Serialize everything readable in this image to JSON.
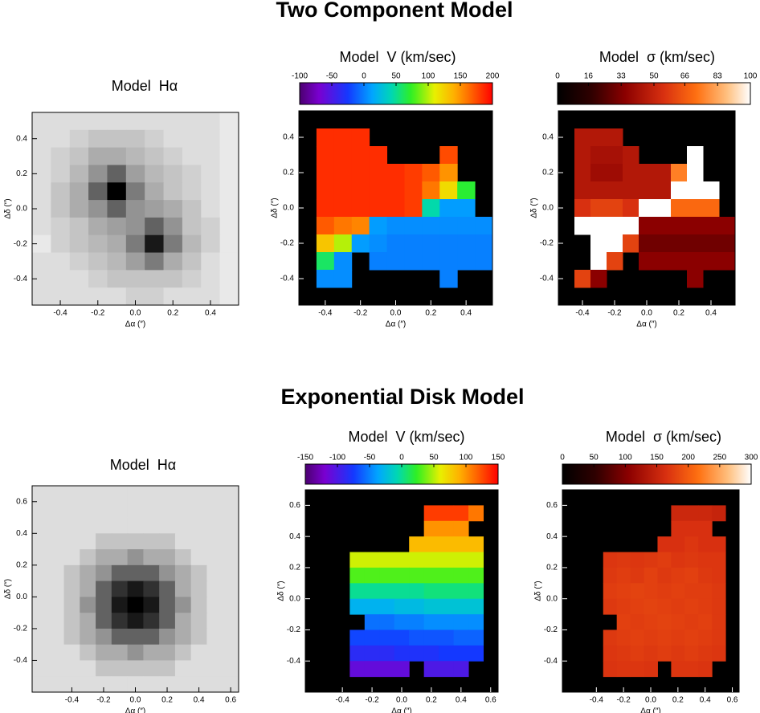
{
  "headings": [
    "Two Component Model",
    "Exponential Disk Model"
  ],
  "chart_data": [
    {
      "type": "heatmap",
      "title": "Model  Hα",
      "xlabel": "Δα (″)",
      "ylabel": "Δδ (″)",
      "colormap": "gray_r",
      "zlim": [
        0,
        10
      ],
      "xlim": [
        -0.55,
        0.55
      ],
      "ylim": [
        -0.55,
        0.55
      ],
      "xticks": [
        -0.4,
        -0.2,
        {
          "value": 0,
          "label": "0.0"
        },
        0.2,
        0.4
      ],
      "yticks": [
        -0.4,
        -0.2,
        {
          "value": 0,
          "label": "0.0"
        },
        0.2,
        0.4
      ],
      "values": [
        [
          1,
          1,
          1,
          1,
          1,
          1,
          1,
          1,
          1,
          1,
          0.5
        ],
        [
          1,
          1,
          1.5,
          2,
          2,
          2,
          1.5,
          1,
          1,
          1,
          0.5
        ],
        [
          1,
          1.5,
          2,
          3,
          3,
          2.5,
          2,
          1.5,
          1,
          1,
          0.5
        ],
        [
          1,
          1.5,
          2.5,
          4,
          6,
          3.5,
          2.5,
          2,
          1.5,
          1,
          0.5
        ],
        [
          1,
          2,
          3,
          6,
          10,
          5,
          3,
          2,
          1.5,
          1,
          0.5
        ],
        [
          1,
          2,
          3,
          4,
          6,
          4,
          3.5,
          3,
          2,
          1,
          0.5
        ],
        [
          1,
          1.5,
          2,
          3,
          3.5,
          4,
          6,
          4,
          2,
          1.5,
          0.5
        ],
        [
          0.5,
          1.5,
          2,
          2.5,
          3,
          5,
          9,
          5,
          2.5,
          1.5,
          0.5
        ],
        [
          1,
          1,
          1.5,
          2,
          2.5,
          3.5,
          5,
          3,
          2,
          1,
          0.5
        ],
        [
          1,
          1,
          1,
          1.5,
          2,
          2,
          2,
          2,
          1.5,
          1,
          0.5
        ],
        [
          1,
          1,
          1,
          1,
          1,
          1.5,
          1.5,
          1,
          1,
          1,
          0.5
        ]
      ]
    },
    {
      "type": "heatmap",
      "title": "Model  V (km/sec)",
      "xlabel": "Δα (″)",
      "ylabel": "Δδ (″)",
      "colormap": "rainbow",
      "colorbar": true,
      "zlim": [
        -100,
        200
      ],
      "zticks": [
        -100,
        -50,
        0,
        50,
        100,
        150,
        200
      ],
      "xlim": [
        -0.55,
        0.55
      ],
      "ylim": [
        -0.55,
        0.55
      ],
      "xticks": [
        -0.4,
        -0.2,
        {
          "value": 0,
          "label": "0.0"
        },
        0.2,
        0.4
      ],
      "yticks": [
        -0.4,
        -0.2,
        {
          "value": 0,
          "label": "0.0"
        },
        0.2,
        0.4
      ],
      "values": [
        [
          null,
          null,
          null,
          null,
          null,
          null,
          null,
          null,
          null,
          null,
          null
        ],
        [
          null,
          185,
          185,
          185,
          null,
          null,
          null,
          null,
          null,
          null,
          null
        ],
        [
          null,
          185,
          185,
          185,
          185,
          null,
          null,
          null,
          175,
          null,
          null
        ],
        [
          null,
          185,
          185,
          185,
          185,
          185,
          180,
          170,
          150,
          null,
          null
        ],
        [
          null,
          185,
          185,
          185,
          185,
          185,
          180,
          160,
          120,
          70,
          null
        ],
        [
          null,
          185,
          185,
          185,
          185,
          185,
          180,
          45,
          10,
          10,
          null
        ],
        [
          null,
          170,
          160,
          155,
          10,
          5,
          5,
          5,
          5,
          5,
          5
        ],
        [
          null,
          130,
          100,
          10,
          5,
          0,
          0,
          0,
          0,
          0,
          0
        ],
        [
          null,
          60,
          5,
          null,
          0,
          0,
          0,
          0,
          0,
          0,
          0
        ],
        [
          null,
          5,
          5,
          null,
          null,
          null,
          null,
          null,
          0,
          null,
          null
        ],
        [
          null,
          null,
          null,
          null,
          null,
          null,
          null,
          null,
          null,
          null,
          null
        ]
      ]
    },
    {
      "type": "heatmap",
      "title": "Model  σ (km/sec)",
      "xlabel": "Δα (″)",
      "ylabel": "Δδ (″)",
      "colormap": "hot",
      "colorbar": true,
      "zlim": [
        0,
        100
      ],
      "zticks": [
        0,
        16,
        33,
        50,
        66,
        83,
        100
      ],
      "xlim": [
        -0.55,
        0.55
      ],
      "ylim": [
        -0.55,
        0.55
      ],
      "xticks": [
        -0.4,
        -0.2,
        {
          "value": 0,
          "label": "0.0"
        },
        0.2,
        0.4
      ],
      "yticks": [
        -0.4,
        -0.2,
        {
          "value": 0,
          "label": "0.0"
        },
        0.2,
        0.4
      ],
      "values": [
        [
          null,
          null,
          null,
          null,
          null,
          null,
          null,
          null,
          null,
          null,
          null
        ],
        [
          null,
          45,
          45,
          45,
          null,
          null,
          null,
          null,
          null,
          null,
          null
        ],
        [
          null,
          45,
          42,
          42,
          45,
          null,
          null,
          null,
          100,
          null,
          null
        ],
        [
          null,
          45,
          40,
          40,
          45,
          45,
          45,
          75,
          100,
          null,
          null
        ],
        [
          null,
          45,
          45,
          45,
          45,
          45,
          45,
          100,
          100,
          100,
          null
        ],
        [
          null,
          55,
          60,
          60,
          55,
          100,
          100,
          70,
          70,
          70,
          null
        ],
        [
          null,
          100,
          100,
          100,
          100,
          35,
          35,
          35,
          35,
          35,
          35
        ],
        [
          null,
          null,
          100,
          100,
          60,
          30,
          30,
          30,
          30,
          30,
          30
        ],
        [
          null,
          null,
          100,
          60,
          null,
          35,
          35,
          35,
          35,
          35,
          35
        ],
        [
          null,
          60,
          35,
          null,
          null,
          null,
          null,
          null,
          35,
          null,
          null
        ],
        [
          null,
          null,
          null,
          null,
          null,
          null,
          null,
          null,
          null,
          null,
          null
        ]
      ]
    },
    {
      "type": "heatmap",
      "title": "Model  Hα",
      "xlabel": "Δα (″)",
      "ylabel": "Δδ (″)",
      "colormap": "gray_r",
      "zlim": [
        0,
        10
      ],
      "xlim": [
        -0.65,
        0.65
      ],
      "ylim": [
        -0.6,
        0.7
      ],
      "xticks": [
        -0.4,
        -0.2,
        {
          "value": 0,
          "label": "0.0"
        },
        0.2,
        0.4,
        0.6
      ],
      "yticks": [
        -0.4,
        -0.2,
        {
          "value": 0,
          "label": "0.0"
        },
        0.2,
        0.4,
        0.6
      ],
      "values": [
        [
          1,
          1,
          1,
          1,
          1,
          1,
          1,
          1,
          1,
          1,
          1,
          1,
          1
        ],
        [
          1,
          1,
          1,
          1,
          1,
          1,
          1,
          1,
          1,
          1,
          1,
          1,
          1
        ],
        [
          1,
          1,
          1,
          1,
          1,
          1,
          1,
          1,
          1,
          1,
          1,
          1,
          1
        ],
        [
          1,
          1,
          1,
          1,
          2,
          2,
          2,
          2,
          2,
          1,
          1,
          1,
          1
        ],
        [
          1,
          1,
          1,
          2,
          3,
          3,
          4,
          3,
          3,
          2,
          1,
          1,
          1
        ],
        [
          1,
          1,
          2,
          3,
          4,
          6,
          6,
          6,
          4,
          3,
          2,
          1,
          1
        ],
        [
          1,
          1,
          2,
          3,
          6,
          8,
          9,
          8,
          6,
          3,
          2,
          1,
          1
        ],
        [
          1,
          1,
          2,
          4,
          6,
          9,
          10,
          9,
          6,
          4,
          2,
          1,
          1
        ],
        [
          1,
          1,
          2,
          3,
          6,
          8,
          9,
          8,
          6,
          3,
          2,
          1,
          1
        ],
        [
          1,
          1,
          2,
          3,
          4,
          6,
          6,
          6,
          4,
          3,
          2,
          1,
          1
        ],
        [
          1,
          1,
          1,
          2,
          3,
          3,
          4,
          3,
          3,
          2,
          1,
          1,
          1
        ],
        [
          1,
          1,
          1,
          1,
          2,
          2,
          2,
          2,
          2,
          1,
          1,
          1,
          1
        ],
        [
          1,
          1,
          1,
          1,
          1,
          1,
          1,
          1,
          1,
          1,
          1,
          1,
          1
        ]
      ]
    },
    {
      "type": "heatmap",
      "title": "Model  V (km/sec)",
      "xlabel": "Δα (″)",
      "ylabel": "Δδ (″)",
      "colormap": "rainbow",
      "colorbar": true,
      "zlim": [
        -150,
        150
      ],
      "zticks": [
        -150,
        -100,
        -50,
        0,
        50,
        100,
        150
      ],
      "xlim": [
        -0.65,
        0.65
      ],
      "ylim": [
        -0.6,
        0.7
      ],
      "xticks": [
        -0.4,
        -0.2,
        {
          "value": 0,
          "label": "0.0"
        },
        0.2,
        0.4,
        0.6
      ],
      "yticks": [
        -0.4,
        -0.2,
        {
          "value": 0,
          "label": "0.0"
        },
        0.2,
        0.4,
        0.6
      ],
      "values": [
        [
          null,
          null,
          null,
          null,
          null,
          null,
          null,
          null,
          null,
          null,
          null,
          null,
          null
        ],
        [
          null,
          null,
          null,
          null,
          null,
          null,
          null,
          null,
          130,
          130,
          130,
          110,
          null
        ],
        [
          null,
          null,
          null,
          null,
          null,
          null,
          null,
          null,
          100,
          100,
          100,
          null,
          null
        ],
        [
          null,
          null,
          null,
          null,
          null,
          null,
          null,
          85,
          85,
          85,
          85,
          85,
          null
        ],
        [
          null,
          null,
          null,
          55,
          55,
          55,
          55,
          55,
          55,
          55,
          55,
          55,
          null
        ],
        [
          null,
          null,
          null,
          30,
          30,
          30,
          30,
          30,
          30,
          30,
          30,
          30,
          null
        ],
        [
          null,
          null,
          null,
          0,
          0,
          0,
          0,
          0,
          5,
          5,
          5,
          5,
          null
        ],
        [
          null,
          null,
          null,
          -30,
          -30,
          -30,
          -25,
          -25,
          -20,
          -20,
          -20,
          -20,
          null
        ],
        [
          null,
          null,
          null,
          null,
          -55,
          -55,
          -50,
          -50,
          -45,
          -45,
          -45,
          -45,
          null
        ],
        [
          null,
          null,
          null,
          -70,
          -70,
          -70,
          -70,
          -65,
          -65,
          -65,
          -60,
          -60,
          null
        ],
        [
          null,
          null,
          null,
          -85,
          -85,
          -85,
          -80,
          -80,
          -80,
          -75,
          -75,
          -75,
          null
        ],
        [
          null,
          null,
          null,
          -110,
          -110,
          -110,
          -110,
          null,
          -100,
          -100,
          -100,
          null,
          null
        ],
        [
          null,
          null,
          null,
          null,
          null,
          null,
          null,
          null,
          null,
          null,
          null,
          null,
          null
        ]
      ]
    },
    {
      "type": "heatmap",
      "title": "Model  σ (km/sec)",
      "xlabel": "Δα (″)",
      "ylabel": "Δδ (″)",
      "colormap": "hot",
      "colorbar": true,
      "zlim": [
        0,
        300
      ],
      "zticks": [
        0,
        50,
        100,
        150,
        200,
        250,
        300
      ],
      "xlim": [
        -0.65,
        0.65
      ],
      "ylim": [
        -0.6,
        0.7
      ],
      "xticks": [
        -0.4,
        -0.2,
        {
          "value": 0,
          "label": "0.0"
        },
        0.2,
        0.4,
        0.6
      ],
      "yticks": [
        -0.4,
        -0.2,
        {
          "value": 0,
          "label": "0.0"
        },
        0.2,
        0.4,
        0.6
      ],
      "values": [
        [
          null,
          null,
          null,
          null,
          null,
          null,
          null,
          null,
          null,
          null,
          null,
          null,
          null
        ],
        [
          null,
          null,
          null,
          null,
          null,
          null,
          null,
          null,
          155,
          155,
          155,
          150,
          null
        ],
        [
          null,
          null,
          null,
          null,
          null,
          null,
          null,
          null,
          165,
          165,
          165,
          null,
          null
        ],
        [
          null,
          null,
          null,
          null,
          null,
          null,
          null,
          165,
          165,
          170,
          165,
          165,
          null
        ],
        [
          null,
          null,
          null,
          170,
          172,
          170,
          172,
          175,
          170,
          172,
          170,
          170,
          null
        ],
        [
          null,
          null,
          null,
          172,
          175,
          172,
          178,
          172,
          175,
          178,
          172,
          170,
          null
        ],
        [
          null,
          null,
          null,
          175,
          178,
          180,
          178,
          175,
          178,
          175,
          175,
          172,
          null
        ],
        [
          null,
          null,
          null,
          172,
          175,
          178,
          180,
          178,
          175,
          178,
          175,
          172,
          null
        ],
        [
          null,
          null,
          null,
          null,
          178,
          175,
          178,
          180,
          178,
          175,
          178,
          172,
          null
        ],
        [
          null,
          null,
          null,
          172,
          175,
          178,
          175,
          178,
          175,
          178,
          175,
          172,
          null
        ],
        [
          null,
          null,
          null,
          170,
          172,
          175,
          172,
          175,
          172,
          175,
          172,
          170,
          null
        ],
        [
          null,
          null,
          null,
          168,
          170,
          170,
          168,
          null,
          170,
          170,
          168,
          null,
          null
        ],
        [
          null,
          null,
          null,
          null,
          null,
          null,
          null,
          null,
          null,
          null,
          null,
          null,
          null
        ]
      ]
    }
  ]
}
